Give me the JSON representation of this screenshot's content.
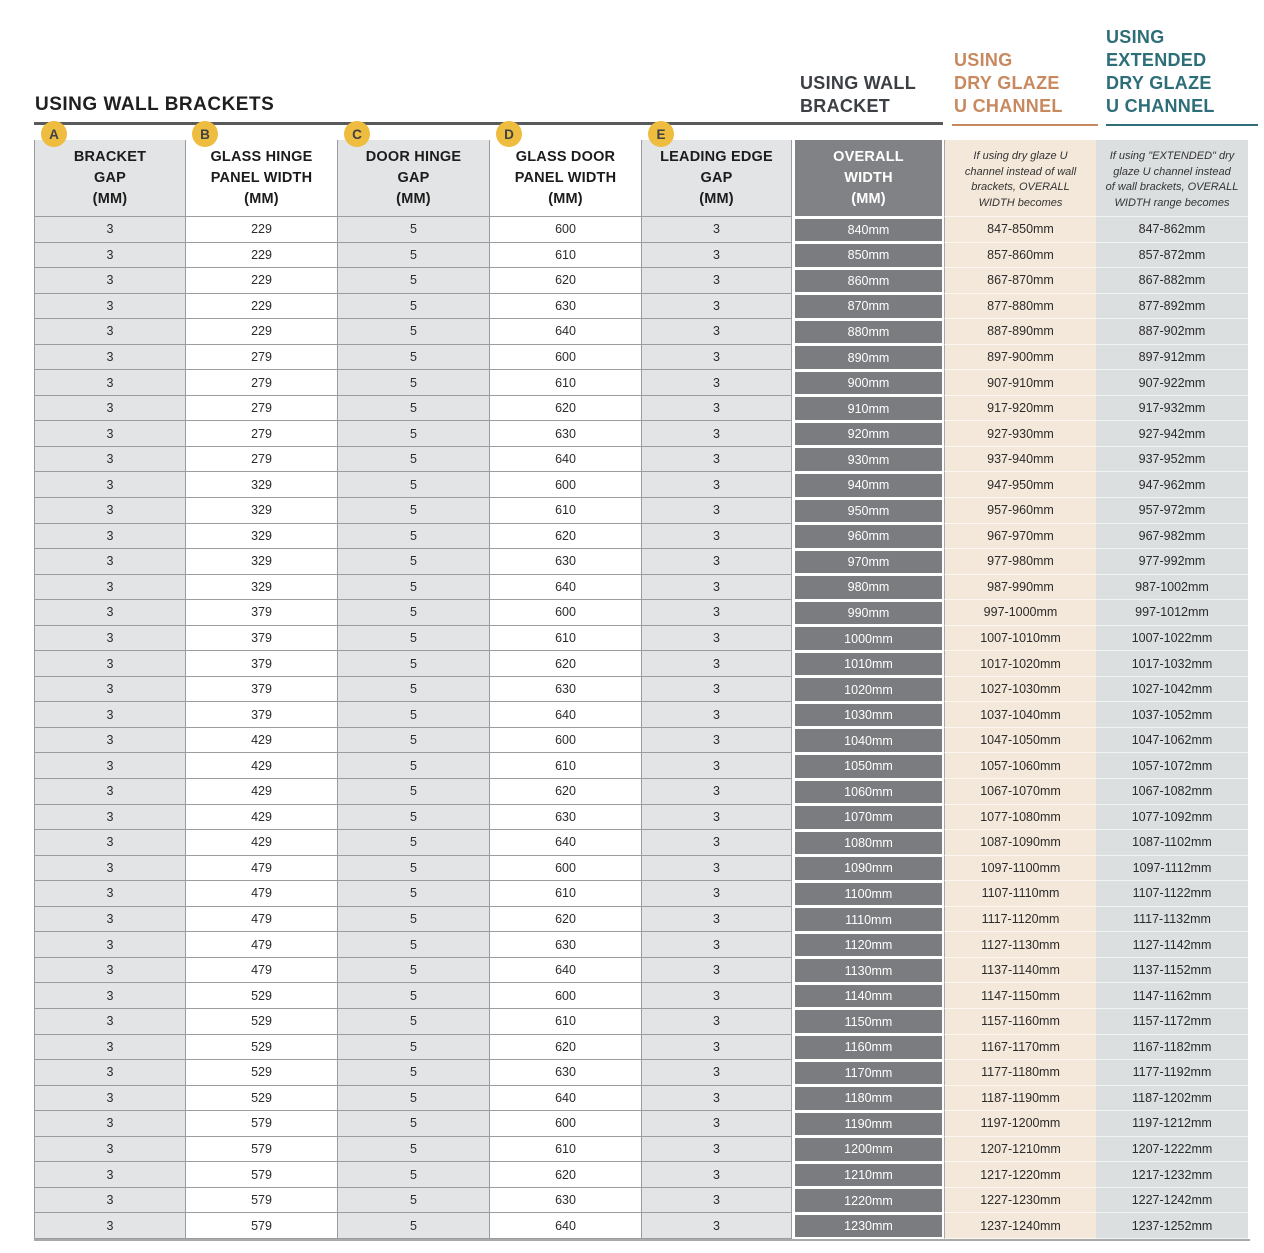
{
  "title": "USING WALL BRACKETS",
  "headers": {
    "wall_bracket": "USING WALL\nBRACKET",
    "dry_glaze": "USING\nDRY GLAZE\nU CHANNEL",
    "extended": "USING\nEXTENDED\nDRY GLAZE\nU CHANNEL"
  },
  "table": {
    "columns": [
      {
        "badge": "A",
        "label": "BRACKET\nGAP\n(MM)",
        "type": "gray"
      },
      {
        "badge": "B",
        "label": "GLASS HINGE\nPANEL WIDTH\n(MM)",
        "type": "white"
      },
      {
        "badge": "C",
        "label": "DOOR HINGE\nGAP\n(MM)",
        "type": "gray"
      },
      {
        "badge": "D",
        "label": "GLASS DOOR\nPANEL WIDTH\n(MM)",
        "type": "white"
      },
      {
        "badge": "E",
        "label": "LEADING EDGE\nGAP\n(MM)",
        "type": "gray"
      },
      {
        "label": "OVERALL\nWIDTH\n(MM)",
        "type": "overall"
      },
      {
        "note": "If using dry glaze U\nchannel instead of wall\nbrackets, OVERALL\nWIDTH becomes",
        "type": "dryglaze"
      },
      {
        "note": "If using \"EXTENDED\" dry\nglaze U channel instead\nof wall brackets, OVERALL\nWIDTH range becomes",
        "type": "extended"
      }
    ],
    "rows": [
      [
        3,
        229,
        5,
        600,
        3,
        "840mm",
        "847-850mm",
        "847-862mm"
      ],
      [
        3,
        229,
        5,
        610,
        3,
        "850mm",
        "857-860mm",
        "857-872mm"
      ],
      [
        3,
        229,
        5,
        620,
        3,
        "860mm",
        "867-870mm",
        "867-882mm"
      ],
      [
        3,
        229,
        5,
        630,
        3,
        "870mm",
        "877-880mm",
        "877-892mm"
      ],
      [
        3,
        229,
        5,
        640,
        3,
        "880mm",
        "887-890mm",
        "887-902mm"
      ],
      [
        3,
        279,
        5,
        600,
        3,
        "890mm",
        "897-900mm",
        "897-912mm"
      ],
      [
        3,
        279,
        5,
        610,
        3,
        "900mm",
        "907-910mm",
        "907-922mm"
      ],
      [
        3,
        279,
        5,
        620,
        3,
        "910mm",
        "917-920mm",
        "917-932mm"
      ],
      [
        3,
        279,
        5,
        630,
        3,
        "920mm",
        "927-930mm",
        "927-942mm"
      ],
      [
        3,
        279,
        5,
        640,
        3,
        "930mm",
        "937-940mm",
        "937-952mm"
      ],
      [
        3,
        329,
        5,
        600,
        3,
        "940mm",
        "947-950mm",
        "947-962mm"
      ],
      [
        3,
        329,
        5,
        610,
        3,
        "950mm",
        "957-960mm",
        "957-972mm"
      ],
      [
        3,
        329,
        5,
        620,
        3,
        "960mm",
        "967-970mm",
        "967-982mm"
      ],
      [
        3,
        329,
        5,
        630,
        3,
        "970mm",
        "977-980mm",
        "977-992mm"
      ],
      [
        3,
        329,
        5,
        640,
        3,
        "980mm",
        "987-990mm",
        "987-1002mm"
      ],
      [
        3,
        379,
        5,
        600,
        3,
        "990mm",
        "997-1000mm",
        "997-1012mm"
      ],
      [
        3,
        379,
        5,
        610,
        3,
        "1000mm",
        "1007-1010mm",
        "1007-1022mm"
      ],
      [
        3,
        379,
        5,
        620,
        3,
        "1010mm",
        "1017-1020mm",
        "1017-1032mm"
      ],
      [
        3,
        379,
        5,
        630,
        3,
        "1020mm",
        "1027-1030mm",
        "1027-1042mm"
      ],
      [
        3,
        379,
        5,
        640,
        3,
        "1030mm",
        "1037-1040mm",
        "1037-1052mm"
      ],
      [
        3,
        429,
        5,
        600,
        3,
        "1040mm",
        "1047-1050mm",
        "1047-1062mm"
      ],
      [
        3,
        429,
        5,
        610,
        3,
        "1050mm",
        "1057-1060mm",
        "1057-1072mm"
      ],
      [
        3,
        429,
        5,
        620,
        3,
        "1060mm",
        "1067-1070mm",
        "1067-1082mm"
      ],
      [
        3,
        429,
        5,
        630,
        3,
        "1070mm",
        "1077-1080mm",
        "1077-1092mm"
      ],
      [
        3,
        429,
        5,
        640,
        3,
        "1080mm",
        "1087-1090mm",
        "1087-1102mm"
      ],
      [
        3,
        479,
        5,
        600,
        3,
        "1090mm",
        "1097-1100mm",
        "1097-1112mm"
      ],
      [
        3,
        479,
        5,
        610,
        3,
        "1100mm",
        "1107-1110mm",
        "1107-1122mm"
      ],
      [
        3,
        479,
        5,
        620,
        3,
        "1110mm",
        "1117-1120mm",
        "1117-1132mm"
      ],
      [
        3,
        479,
        5,
        630,
        3,
        "1120mm",
        "1127-1130mm",
        "1127-1142mm"
      ],
      [
        3,
        479,
        5,
        640,
        3,
        "1130mm",
        "1137-1140mm",
        "1137-1152mm"
      ],
      [
        3,
        529,
        5,
        600,
        3,
        "1140mm",
        "1147-1150mm",
        "1147-1162mm"
      ],
      [
        3,
        529,
        5,
        610,
        3,
        "1150mm",
        "1157-1160mm",
        "1157-1172mm"
      ],
      [
        3,
        529,
        5,
        620,
        3,
        "1160mm",
        "1167-1170mm",
        "1167-1182mm"
      ],
      [
        3,
        529,
        5,
        630,
        3,
        "1170mm",
        "1177-1180mm",
        "1177-1192mm"
      ],
      [
        3,
        529,
        5,
        640,
        3,
        "1180mm",
        "1187-1190mm",
        "1187-1202mm"
      ],
      [
        3,
        579,
        5,
        600,
        3,
        "1190mm",
        "1197-1200mm",
        "1197-1212mm"
      ],
      [
        3,
        579,
        5,
        610,
        3,
        "1200mm",
        "1207-1210mm",
        "1207-1222mm"
      ],
      [
        3,
        579,
        5,
        620,
        3,
        "1210mm",
        "1217-1220mm",
        "1217-1232mm"
      ],
      [
        3,
        579,
        5,
        630,
        3,
        "1220mm",
        "1227-1230mm",
        "1227-1242mm"
      ],
      [
        3,
        579,
        5,
        640,
        3,
        "1230mm",
        "1237-1240mm",
        "1237-1252mm"
      ]
    ]
  },
  "colors": {
    "accent_salmon": "#C8895F",
    "accent_teal": "#2D6E79",
    "charcoal": "#3C4044",
    "badge_yellow": "#EEBC3F",
    "overall_dark": "#7B7C7F",
    "dry_glaze_bg": "#F4E8DA",
    "extended_bg": "#DBDFE0",
    "column_gray_bg": "#E3E4E6",
    "border_gray": "#9B9C9E"
  }
}
